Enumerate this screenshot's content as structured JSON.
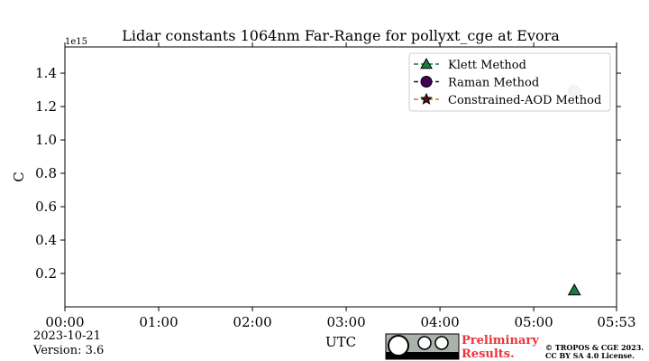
{
  "chart_data": {
    "type": "scatter",
    "title": "Lidar constants 1064nm Far-Range for pollyxt_cge at Evora",
    "ylabel": "C",
    "xlabel": "UTC",
    "y_offset_label": "1e15",
    "x": [
      326
    ],
    "xlim": [
      0,
      353
    ],
    "xticks": [
      {
        "value": 0,
        "label": "00:00"
      },
      {
        "value": 60,
        "label": "01:00"
      },
      {
        "value": 120,
        "label": "02:00"
      },
      {
        "value": 180,
        "label": "03:00"
      },
      {
        "value": 240,
        "label": "04:00"
      },
      {
        "value": 300,
        "label": "05:00"
      },
      {
        "value": 353,
        "label": "05:53"
      }
    ],
    "ylim": [
      0,
      1.557
    ],
    "yticks": [
      0.2,
      0.4,
      0.6,
      0.8,
      {
        "value": 1,
        "label": "1.0"
      },
      1.2,
      1.4
    ],
    "legend": "upper right",
    "series": [
      {
        "name": "Klett Method",
        "color": "#1a7a45",
        "marker": "triangle",
        "alpha": 1,
        "values": [
          0.1
        ]
      },
      {
        "name": "Raman Method",
        "color": "#440154",
        "marker": "circle",
        "alpha": 0.25,
        "values": [
          1.29
        ]
      },
      {
        "name": "Constrained-AOD Method",
        "color": "#5a1010",
        "line_color": "#c87a2a",
        "marker": "star",
        "alpha": 1,
        "values": [
          null
        ]
      }
    ],
    "date": "2023-10-21",
    "version": "Version: 3.6",
    "watermark": [
      "Preliminary",
      "Results."
    ],
    "copyright": [
      "© TROPOS & CGE 2023.",
      "CC BY SA 4.0 License."
    ]
  }
}
